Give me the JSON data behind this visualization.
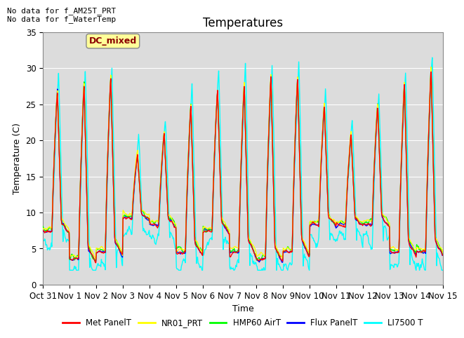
{
  "title": "Temperatures",
  "xlabel": "Time",
  "ylabel": "Temperature (C)",
  "ylim": [
    0,
    35
  ],
  "xtick_labels": [
    "Oct 31",
    "Nov 1",
    "Nov 2",
    "Nov 3",
    "Nov 4",
    "Nov 5",
    "Nov 6",
    "Nov 7",
    "Nov 8",
    "Nov 9",
    "Nov 10",
    "Nov 11",
    "Nov 12",
    "Nov 13",
    "Nov 14",
    "Nov 15"
  ],
  "ytick_labels": [
    "0",
    "5",
    "10",
    "15",
    "20",
    "25",
    "30",
    "35"
  ],
  "series_names": [
    "Met PanelT",
    "NR01_PRT",
    "HMP60 AirT",
    "Flux PanelT",
    "LI7500 T"
  ],
  "annotation_text": "No data for f_AM25T_PRT\nNo data for f_WaterTemp",
  "legend_label": "DC_mixed",
  "legend_label_color": "#8B0000",
  "legend_box_color": "#FFFF99",
  "bg_color": "#DCDCDC",
  "title_fontsize": 12,
  "axis_fontsize": 9,
  "tick_fontsize": 8.5
}
